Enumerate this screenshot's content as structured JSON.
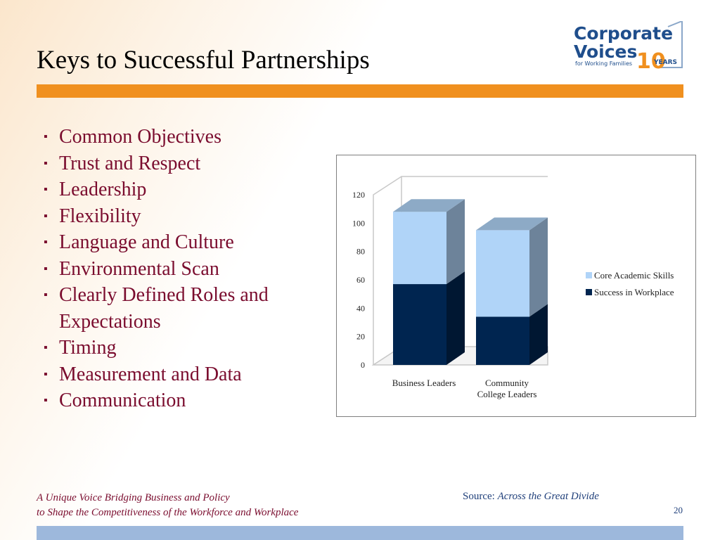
{
  "slide": {
    "title": "Keys to Successful Partnerships",
    "bullets": [
      "Common Objectives",
      "Trust and Respect",
      "Leadership",
      "Flexibility",
      "Language and Culture",
      "Environmental Scan",
      "Clearly Defined Roles and Expectations",
      "Timing",
      "Measurement and Data",
      "Communication"
    ],
    "bullet_marker": "▪"
  },
  "logo": {
    "line1": "Corporate",
    "line2": "Voices",
    "tagline": "for Working Families",
    "years_number": "10",
    "years_label": "YEARS"
  },
  "footer": {
    "tagline_line1": "A Unique Voice Bridging Business and Policy",
    "tagline_line2": "to Shape the Competitiveness of the Workforce and Workplace",
    "source_label": "Source:",
    "source_title": "Across the Great Divide",
    "page_number": "20"
  },
  "colors": {
    "orange_bar": "#f0901f",
    "title_text": "#000000",
    "bullet_text": "#7a0c2e",
    "logo_blue": "#1f4e8c",
    "logo_orange": "#f0901f",
    "bottom_bar": "#9db8dc",
    "core_academic": "#b0d4f8",
    "success_workplace": "#002550"
  },
  "chart_data": {
    "type": "bar",
    "stacked": true,
    "three_d": true,
    "categories": [
      "Business Leaders",
      "Community College Leaders"
    ],
    "category_labels": [
      [
        "Business Leaders"
      ],
      [
        "Community",
        "College Leaders"
      ]
    ],
    "series": [
      {
        "name": "Success in Workplace",
        "values": [
          57,
          34
        ],
        "color": "#002550"
      },
      {
        "name": "Core Academic Skills",
        "values": [
          51,
          61
        ],
        "color": "#b0d4f8"
      }
    ],
    "legend": [
      "Core Academic Skills",
      "Success in Workplace"
    ],
    "ylim": [
      0,
      120
    ],
    "yticks": [
      0,
      20,
      40,
      60,
      80,
      100,
      120
    ],
    "grid": false,
    "legend_position": "right"
  }
}
